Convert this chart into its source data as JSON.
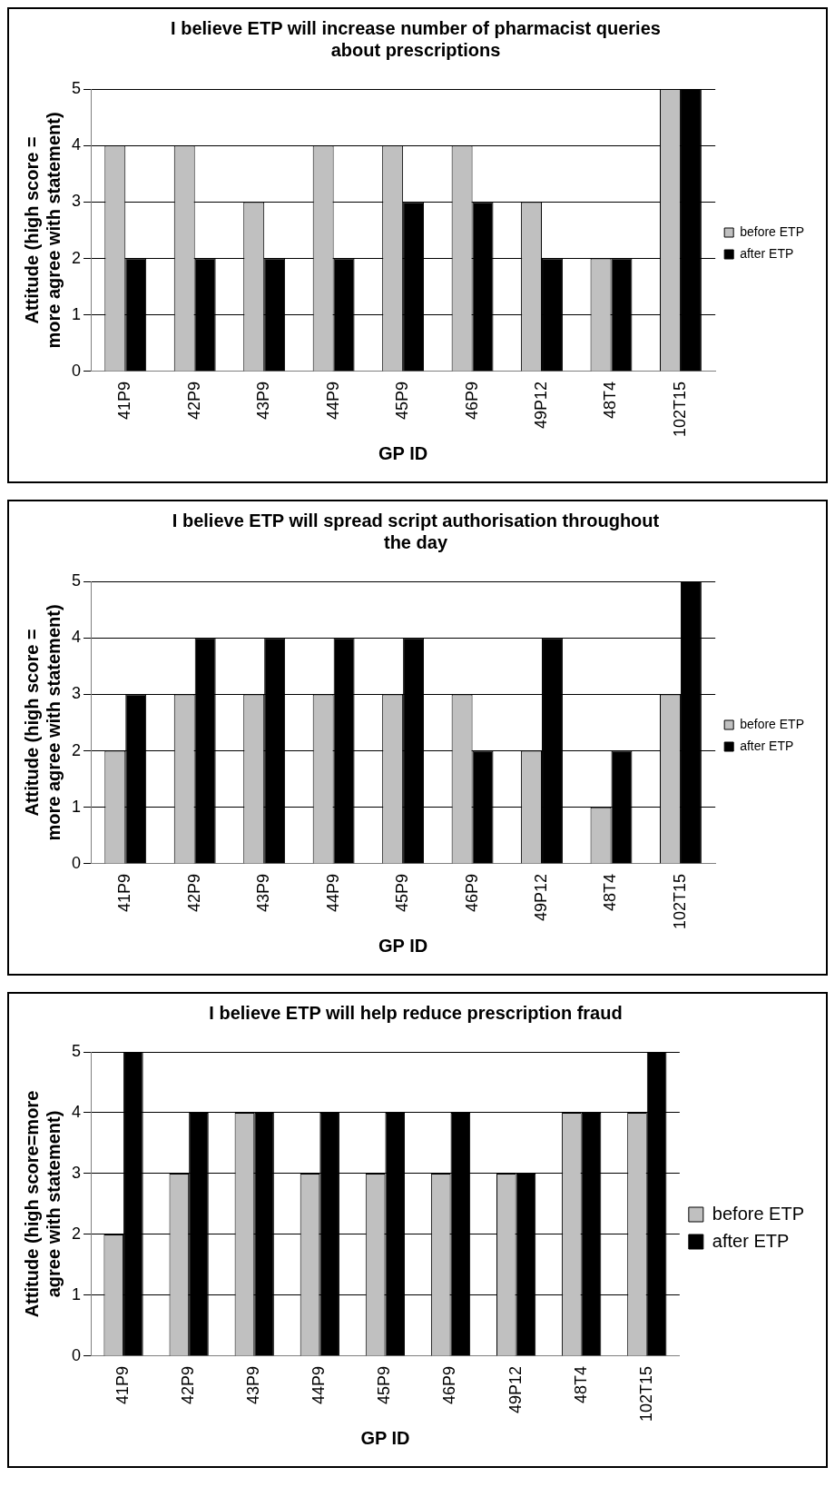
{
  "chart_data": [
    {
      "type": "bar",
      "title": "I believe ETP will increase number of pharmacist queries about prescriptions",
      "xlabel": "GP ID",
      "ylabel": "Attitude (high score = more agree with statement)",
      "categories": [
        "41P9",
        "42P9",
        "43P9",
        "44P9",
        "45P9",
        "46P9",
        "49P12",
        "48T4",
        "102T15"
      ],
      "series": [
        {
          "name": "before ETP",
          "color": "#c0c0c0",
          "values": [
            4,
            4,
            3,
            4,
            4,
            4,
            3,
            2,
            5
          ]
        },
        {
          "name": "after ETP",
          "color": "#000000",
          "values": [
            2,
            2,
            2,
            2,
            3,
            3,
            2,
            2,
            5
          ]
        }
      ],
      "ylim": [
        0,
        5
      ],
      "yticks": [
        0,
        1,
        2,
        3,
        4,
        5
      ],
      "grid": "y",
      "legend": "right"
    },
    {
      "type": "bar",
      "title": "I believe ETP will spread script authorisation throughout the day",
      "xlabel": "GP ID",
      "ylabel": "Attitude (high score = more agree with statement)",
      "categories": [
        "41P9",
        "42P9",
        "43P9",
        "44P9",
        "45P9",
        "46P9",
        "49P12",
        "48T4",
        "102T15"
      ],
      "series": [
        {
          "name": "before ETP",
          "color": "#c0c0c0",
          "values": [
            2,
            3,
            3,
            3,
            3,
            3,
            2,
            1,
            3
          ]
        },
        {
          "name": "after ETP",
          "color": "#000000",
          "values": [
            3,
            4,
            4,
            4,
            4,
            2,
            4,
            2,
            5
          ]
        }
      ],
      "ylim": [
        0,
        5
      ],
      "yticks": [
        0,
        1,
        2,
        3,
        4,
        5
      ],
      "grid": "y",
      "legend": "right"
    },
    {
      "type": "bar",
      "title": "I believe ETP will help reduce prescription fraud",
      "xlabel": "GP ID",
      "ylabel": "Attitude (high score=more agree with statement)",
      "categories": [
        "41P9",
        "42P9",
        "43P9",
        "44P9",
        "45P9",
        "46P9",
        "49P12",
        "48T4",
        "102T15"
      ],
      "series": [
        {
          "name": "before ETP",
          "color": "#c0c0c0",
          "values": [
            2,
            3,
            4,
            3,
            3,
            3,
            3,
            4,
            4
          ]
        },
        {
          "name": "after ETP",
          "color": "#000000",
          "values": [
            5,
            4,
            4,
            4,
            4,
            4,
            3,
            4,
            5
          ]
        }
      ],
      "ylim": [
        0,
        5
      ],
      "yticks": [
        0,
        1,
        2,
        3,
        4,
        5
      ],
      "grid": "y",
      "legend": "right"
    }
  ]
}
